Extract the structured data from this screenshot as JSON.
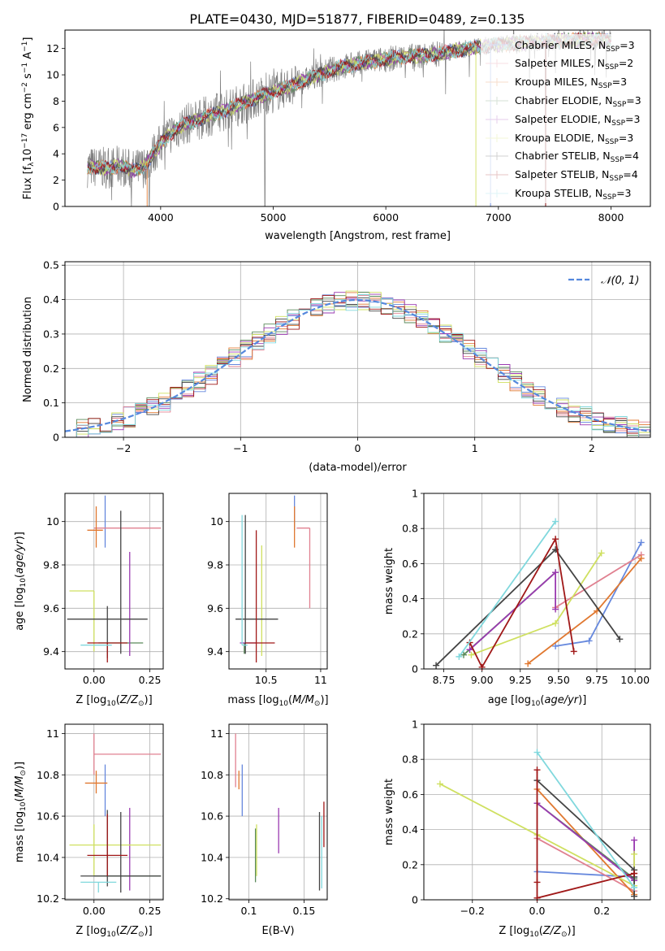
{
  "title": "PLATE=0430, MJD=51877, FIBERID=0489, z=0.135",
  "colors": {
    "Chabrier MILES": "#6688dd",
    "Salpeter MILES": "#e08090",
    "Kroupa MILES": "#e07830",
    "Chabrier ELODIE": "#5a8a5a",
    "Salpeter ELODIE": "#9a3ab0",
    "Kroupa ELODIE": "#cfe060",
    "Chabrier STELIB": "#444444",
    "Salpeter STELIB": "#a01818",
    "Kroupa STELIB": "#80d8dd",
    "data": "#7f7f7f",
    "gaussian": "#5588dd"
  },
  "legend_spectrum": [
    {
      "model": "Chabrier MILES",
      "prefix": "Chabrier MILES, N",
      "sub": "SSP",
      "suffix": "=3"
    },
    {
      "model": "Salpeter MILES",
      "prefix": "Salpeter MILES, N",
      "sub": "SSP",
      "suffix": "=2"
    },
    {
      "model": "Kroupa MILES",
      "prefix": "Kroupa MILES, N",
      "sub": "SSP",
      "suffix": "=3"
    },
    {
      "model": "Chabrier ELODIE",
      "prefix": "Chabrier ELODIE, N",
      "sub": "SSP",
      "suffix": "=3"
    },
    {
      "model": "Salpeter ELODIE",
      "prefix": "Salpeter ELODIE, N",
      "sub": "SSP",
      "suffix": "=3"
    },
    {
      "model": "Kroupa ELODIE",
      "prefix": "Kroupa ELODIE, N",
      "sub": "SSP",
      "suffix": "=3"
    },
    {
      "model": "Chabrier STELIB",
      "prefix": "Chabrier STELIB, N",
      "sub": "SSP",
      "suffix": "=4"
    },
    {
      "model": "Salpeter STELIB",
      "prefix": "Salpeter STELIB, N",
      "sub": "SSP",
      "suffix": "=4"
    },
    {
      "model": "Kroupa STELIB",
      "prefix": "Kroupa STELIB, N",
      "sub": "SSP",
      "suffix": "=3"
    }
  ],
  "legend_hist": "𝒩(0, 1)",
  "chart_data": [
    {
      "id": "spectrum",
      "type": "line",
      "xlabel": "wavelength [Angstrom, rest frame]",
      "ylabel": "Flux [f",
      "xlim": [
        3150,
        8350
      ],
      "ylim": [
        0,
        13.4
      ],
      "xticks": [
        4000,
        5000,
        6000,
        7000,
        8000
      ],
      "yticks": [
        0,
        2,
        4,
        6,
        8,
        10,
        12
      ],
      "continuum": [
        [
          3350,
          3.0
        ],
        [
          3550,
          2.9
        ],
        [
          3650,
          3.1
        ],
        [
          3750,
          2.7
        ],
        [
          3850,
          3.0
        ],
        [
          3950,
          4.2
        ],
        [
          4050,
          5.3
        ],
        [
          4200,
          6.2
        ],
        [
          4400,
          6.8
        ],
        [
          4600,
          7.4
        ],
        [
          4800,
          8.1
        ],
        [
          5000,
          8.7
        ],
        [
          5200,
          9.3
        ],
        [
          5400,
          10.0
        ],
        [
          5600,
          10.6
        ],
        [
          5800,
          10.9
        ],
        [
          6000,
          11.2
        ],
        [
          6200,
          11.4
        ],
        [
          6400,
          11.5
        ],
        [
          6600,
          11.8
        ],
        [
          6800,
          12.1
        ],
        [
          7000,
          12.3
        ],
        [
          7200,
          12.4
        ],
        [
          7400,
          12.5
        ],
        [
          7600,
          12.6
        ],
        [
          7800,
          12.7
        ],
        [
          8000,
          12.6
        ]
      ]
    },
    {
      "id": "residuals",
      "type": "step-histogram",
      "xlabel": "(data-model)/error",
      "ylabel": "Normed distribution",
      "xlim": [
        -2.5,
        2.5
      ],
      "ylim": [
        0,
        0.51
      ],
      "xticks": [
        -2,
        -1,
        0,
        1,
        2
      ],
      "yticks": [
        0.0,
        0.1,
        0.2,
        0.3,
        0.4,
        0.5
      ],
      "reference": "gaussian mean 0 sigma 1"
    },
    {
      "id": "age-vs-Z",
      "type": "errorbar",
      "xlabel": "Z [log",
      "ylabel": "age  [log",
      "xlim": [
        -0.13,
        0.31
      ],
      "ylim": [
        9.32,
        10.13
      ],
      "xticks": [
        0.0,
        0.25
      ],
      "yticks": [
        9.4,
        9.6,
        9.8,
        10.0
      ],
      "points": [
        {
          "model": "Chabrier MILES",
          "x": 0.05,
          "xerr": [
            0.0,
            0.0
          ],
          "y": 9.96,
          "yerr": [
            0.08,
            0.16
          ]
        },
        {
          "model": "Salpeter MILES",
          "x": 0.2,
          "xerr": [
            0.2,
            0.1
          ],
          "y": 9.97,
          "yerr": [
            0.0,
            0.0
          ]
        },
        {
          "model": "Kroupa MILES",
          "x": 0.01,
          "xerr": [
            0.04,
            0.03
          ],
          "y": 9.96,
          "yerr": [
            0.08,
            0.11
          ]
        },
        {
          "model": "Chabrier ELODIE",
          "x": 0.12,
          "xerr": [
            0.1,
            0.1
          ],
          "y": 9.44,
          "yerr": [
            0.0,
            0.0
          ]
        },
        {
          "model": "Salpeter ELODIE",
          "x": 0.16,
          "xerr": [
            0.0,
            0.0
          ],
          "y": 9.44,
          "yerr": [
            0.06,
            0.42
          ]
        },
        {
          "model": "Kroupa ELODIE",
          "x": 0.0,
          "xerr": [
            0.11,
            0.0
          ],
          "y": 9.68,
          "yerr": [
            0.28,
            0.0
          ]
        },
        {
          "model": "Chabrier STELIB",
          "x": 0.06,
          "xerr": [
            0.18,
            0.18
          ],
          "y": 9.55,
          "yerr": [
            0.18,
            0.06
          ]
        },
        {
          "model": "Chabrier STELIB",
          "x": 0.12,
          "xerr": [
            0.0,
            0.0
          ],
          "y": 9.55,
          "yerr": [
            0.16,
            0.5
          ]
        },
        {
          "model": "Salpeter STELIB",
          "x": 0.06,
          "xerr": [
            0.09,
            0.09
          ],
          "y": 9.44,
          "yerr": [
            0.09,
            0.0
          ]
        },
        {
          "model": "Kroupa STELIB",
          "x": 0.02,
          "xerr": [
            0.08,
            0.06
          ],
          "y": 9.43,
          "yerr": [
            0.0,
            0.0
          ]
        }
      ]
    },
    {
      "id": "age-vs-mass",
      "type": "errorbar",
      "xlabel": "mass [log",
      "ylabel": "",
      "xlim": [
        10.16,
        11.06
      ],
      "ylim": [
        9.32,
        10.13
      ],
      "xticks": [
        10.5,
        11.0
      ],
      "yticks": [
        9.4,
        9.6,
        9.8,
        10.0
      ],
      "points": [
        {
          "model": "Chabrier MILES",
          "x": 10.76,
          "xerr": [
            0.0,
            0.0
          ],
          "y": 9.96,
          "yerr": [
            0.0,
            0.16
          ]
        },
        {
          "model": "Salpeter MILES",
          "x": 10.9,
          "xerr": [
            0.12,
            0.0
          ],
          "y": 9.97,
          "yerr": [
            0.37,
            0.0
          ]
        },
        {
          "model": "Kroupa MILES",
          "x": 10.76,
          "xerr": [
            0.0,
            0.0
          ],
          "y": 9.96,
          "yerr": [
            0.08,
            0.11
          ]
        },
        {
          "model": "Chabrier ELODIE",
          "x": 10.3,
          "xerr": [
            0.0,
            0.0
          ],
          "y": 9.44,
          "yerr": [
            0.05,
            0.0
          ]
        },
        {
          "model": "Salpeter ELODIE",
          "x": 10.41,
          "xerr": [
            0.15,
            0.0
          ],
          "y": 9.44,
          "yerr": [
            0.0,
            0.0
          ]
        },
        {
          "model": "Kroupa ELODIE",
          "x": 10.46,
          "xerr": [
            0.0,
            0.0
          ],
          "y": 9.68,
          "yerr": [
            0.3,
            0.21
          ]
        },
        {
          "model": "Chabrier STELIB",
          "x": 10.31,
          "xerr": [
            0.09,
            0.3
          ],
          "y": 9.55,
          "yerr": [
            0.16,
            0.48
          ]
        },
        {
          "model": "Salpeter STELIB",
          "x": 10.41,
          "xerr": [
            0.1,
            0.17
          ],
          "y": 9.44,
          "yerr": [
            0.09,
            0.52
          ]
        },
        {
          "model": "Kroupa STELIB",
          "x": 10.28,
          "xerr": [
            0.0,
            0.05
          ],
          "y": 9.43,
          "yerr": [
            0.0,
            0.6
          ]
        }
      ]
    },
    {
      "id": "weight-vs-age",
      "type": "line",
      "xlabel": "age  [log",
      "ylabel": "mass weight",
      "xlim": [
        8.62,
        10.1
      ],
      "ylim": [
        0,
        1.0
      ],
      "xticks": [
        8.75,
        9.0,
        9.25,
        9.5,
        9.75,
        10.0
      ],
      "yticks": [
        0.0,
        0.2,
        0.4,
        0.6,
        0.8,
        1.0
      ],
      "series": [
        {
          "model": "Chabrier MILES",
          "x": [
            9.48,
            9.7,
            10.04
          ],
          "y": [
            0.13,
            0.16,
            0.72
          ]
        },
        {
          "model": "Salpeter MILES",
          "x": [
            9.48,
            10.04
          ],
          "y": [
            0.35,
            0.65
          ]
        },
        {
          "model": "Kroupa MILES",
          "x": [
            9.3,
            9.75,
            10.04
          ],
          "y": [
            0.03,
            0.33,
            0.63
          ]
        },
        {
          "model": "Chabrier ELODIE",
          "x": [
            8.88,
            9.48
          ],
          "y": [
            0.08,
            0.55
          ]
        },
        {
          "model": "Salpeter ELODIE",
          "x": [
            8.92,
            9.48,
            9.48
          ],
          "y": [
            0.11,
            0.55,
            0.34
          ]
        },
        {
          "model": "Kroupa ELODIE",
          "x": [
            8.93,
            9.48,
            9.78
          ],
          "y": [
            0.08,
            0.26,
            0.66
          ]
        },
        {
          "model": "Chabrier STELIB",
          "x": [
            8.7,
            9.48,
            9.9
          ],
          "y": [
            0.02,
            0.68,
            0.17
          ]
        },
        {
          "model": "Salpeter STELIB",
          "x": [
            8.92,
            9.0,
            9.48,
            9.6
          ],
          "y": [
            0.15,
            0.01,
            0.74,
            0.1
          ]
        },
        {
          "model": "Kroupa STELIB",
          "x": [
            8.85,
            9.48
          ],
          "y": [
            0.07,
            0.84
          ]
        }
      ]
    },
    {
      "id": "mass-vs-Z",
      "type": "errorbar",
      "xlabel": "Z [log",
      "ylabel": "mass [log",
      "xlim": [
        -0.13,
        0.31
      ],
      "ylim": [
        10.195,
        11.045
      ],
      "xticks": [
        0.0,
        0.25
      ],
      "yticks": [
        10.2,
        10.4,
        10.6,
        10.8,
        11.0
      ],
      "points": [
        {
          "model": "Chabrier MILES",
          "x": 0.05,
          "xerr": [
            0.0,
            0.0
          ],
          "y": 10.75,
          "yerr": [
            0.15,
            0.1
          ]
        },
        {
          "model": "Salpeter MILES",
          "x": 0.0,
          "xerr": [
            0.0,
            0.3
          ],
          "y": 10.9,
          "yerr": [
            0.1,
            0.1
          ]
        },
        {
          "model": "Kroupa MILES",
          "x": 0.01,
          "xerr": [
            0.05,
            0.05
          ],
          "y": 10.76,
          "yerr": [
            0.05,
            0.06
          ]
        },
        {
          "model": "Chabrier ELODIE",
          "x": 0.0,
          "xerr": [
            0.0,
            0.3
          ],
          "y": 10.31,
          "yerr": [
            0.0,
            0.0
          ]
        },
        {
          "model": "Salpeter ELODIE",
          "x": 0.16,
          "xerr": [
            0.0,
            0.0
          ],
          "y": 10.44,
          "yerr": [
            0.2,
            0.2
          ]
        },
        {
          "model": "Kroupa ELODIE",
          "x": 0.0,
          "xerr": [
            0.11,
            0.3
          ],
          "y": 10.46,
          "yerr": [
            0.15,
            0.1
          ]
        },
        {
          "model": "Chabrier STELIB",
          "x": 0.12,
          "xerr": [
            0.18,
            0.18
          ],
          "y": 10.31,
          "yerr": [
            0.08,
            0.31
          ]
        },
        {
          "model": "Chabrier STELIB",
          "x": 0.06,
          "xerr": [
            0.0,
            0.0
          ],
          "y": 10.31,
          "yerr": [
            0.05,
            0.32
          ]
        },
        {
          "model": "Salpeter STELIB",
          "x": 0.06,
          "xerr": [
            0.09,
            0.09
          ],
          "y": 10.41,
          "yerr": [
            0.1,
            0.2
          ]
        },
        {
          "model": "Kroupa STELIB",
          "x": 0.02,
          "xerr": [
            0.08,
            0.08
          ],
          "y": 10.28,
          "yerr": [
            0.05,
            0.0
          ]
        }
      ]
    },
    {
      "id": "mass-vs-EBV",
      "type": "errorbar",
      "xlabel": "E(B-V)",
      "ylabel": "",
      "xlim": [
        0.082,
        0.171
      ],
      "ylim": [
        10.195,
        11.045
      ],
      "xticks": [
        0.1,
        0.15
      ],
      "yticks": [
        10.2,
        10.4,
        10.6,
        10.8,
        11.0
      ],
      "points": [
        {
          "model": "Salpeter MILES",
          "x": 0.088,
          "xerr": [
            0.0,
            0.0
          ],
          "y": 10.9,
          "yerr": [
            0.16,
            0.1
          ]
        },
        {
          "model": "Kroupa MILES",
          "x": 0.091,
          "xerr": [
            0.0,
            0.0
          ],
          "y": 10.76,
          "yerr": [
            0.03,
            0.06
          ]
        },
        {
          "model": "Chabrier MILES",
          "x": 0.094,
          "xerr": [
            0.0,
            0.0
          ],
          "y": 10.75,
          "yerr": [
            0.15,
            0.1
          ]
        },
        {
          "model": "Chabrier ELODIE",
          "x": 0.106,
          "xerr": [
            0.0,
            0.0
          ],
          "y": 10.41,
          "yerr": [
            0.13,
            0.13
          ]
        },
        {
          "model": "Kroupa ELODIE",
          "x": 0.107,
          "xerr": [
            0.0,
            0.0
          ],
          "y": 10.41,
          "yerr": [
            0.1,
            0.15
          ]
        },
        {
          "model": "Salpeter ELODIE",
          "x": 0.127,
          "xerr": [
            0.0,
            0.0
          ],
          "y": 10.53,
          "yerr": [
            0.11,
            0.11
          ]
        },
        {
          "model": "Chabrier STELIB",
          "x": 0.164,
          "xerr": [
            0.0,
            0.0
          ],
          "y": 10.44,
          "yerr": [
            0.2,
            0.18
          ]
        },
        {
          "model": "Kroupa STELIB",
          "x": 0.166,
          "xerr": [
            0.0,
            0.0
          ],
          "y": 10.45,
          "yerr": [
            0.2,
            0.15
          ]
        },
        {
          "model": "Salpeter STELIB",
          "x": 0.168,
          "xerr": [
            0.0,
            0.0
          ],
          "y": 10.55,
          "yerr": [
            0.1,
            0.12
          ]
        }
      ]
    },
    {
      "id": "weight-vs-Z",
      "type": "line",
      "xlabel": "Z [log",
      "ylabel": "mass weight",
      "xlim": [
        -0.35,
        0.35
      ],
      "ylim": [
        0,
        1.0
      ],
      "xticks": [
        -0.2,
        0.0,
        0.2
      ],
      "yticks": [
        0.0,
        0.2,
        0.4,
        0.6,
        0.8,
        1.0
      ],
      "series": [
        {
          "model": "Chabrier MILES",
          "x": [
            0.0,
            0.3
          ],
          "y": [
            0.16,
            0.13
          ]
        },
        {
          "model": "Salpeter MILES",
          "x": [
            0.0,
            0.3
          ],
          "y": [
            0.35,
            0.05
          ]
        },
        {
          "model": "Kroupa MILES",
          "x": [
            0.0,
            0.3
          ],
          "y": [
            0.63,
            0.03
          ]
        },
        {
          "model": "Chabrier ELODIE",
          "x": [
            0.0,
            0.3
          ],
          "y": [
            0.55,
            0.12
          ]
        },
        {
          "model": "Salpeter ELODIE",
          "x": [
            0.0,
            0.3,
            0.3
          ],
          "y": [
            0.55,
            0.11,
            0.34
          ]
        },
        {
          "model": "Kroupa ELODIE",
          "x": [
            -0.3,
            0.0,
            0.3,
            0.3
          ],
          "y": [
            0.66,
            0.37,
            0.08,
            0.26
          ]
        },
        {
          "model": "Chabrier STELIB",
          "x": [
            0.0,
            0.3,
            0.3,
            0.3
          ],
          "y": [
            0.68,
            0.17,
            0.02,
            0.13
          ]
        },
        {
          "model": "Salpeter STELIB",
          "x": [
            0.0,
            0.0,
            0.0,
            0.3,
            0.3
          ],
          "y": [
            0.74,
            0.1,
            0.01,
            0.15,
            0.15
          ]
        },
        {
          "model": "Kroupa STELIB",
          "x": [
            0.0,
            0.3
          ],
          "y": [
            0.84,
            0.07
          ]
        }
      ]
    }
  ]
}
